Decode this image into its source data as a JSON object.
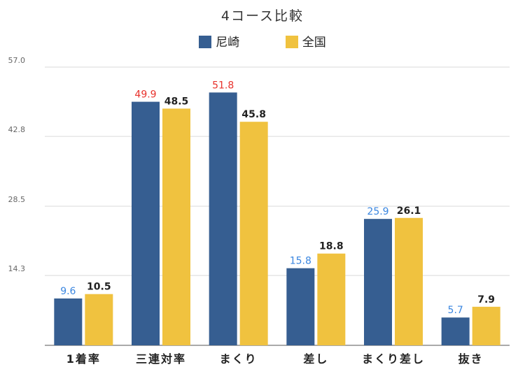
{
  "chart_data": {
    "type": "bar",
    "title": "4コース比較",
    "categories": [
      "1着率",
      "三連対率",
      "まくり",
      "差し",
      "まくり差し",
      "抜き"
    ],
    "series": [
      {
        "name": "尼崎",
        "color": "#365e91",
        "values": [
          9.6,
          49.9,
          51.8,
          15.8,
          25.9,
          5.7
        ],
        "label_colors": [
          "#3a86e0",
          "#e8322c",
          "#e8322c",
          "#3a86e0",
          "#3a86e0",
          "#3a86e0"
        ]
      },
      {
        "name": "全国",
        "color": "#f0c23f",
        "values": [
          10.5,
          48.5,
          45.8,
          18.8,
          26.1,
          7.9
        ]
      }
    ],
    "yticks": [
      "14.3",
      "28.5",
      "42.8",
      "57.0"
    ],
    "ylim": [
      0,
      57.0
    ],
    "grid": true,
    "legend_position": "top-center"
  }
}
